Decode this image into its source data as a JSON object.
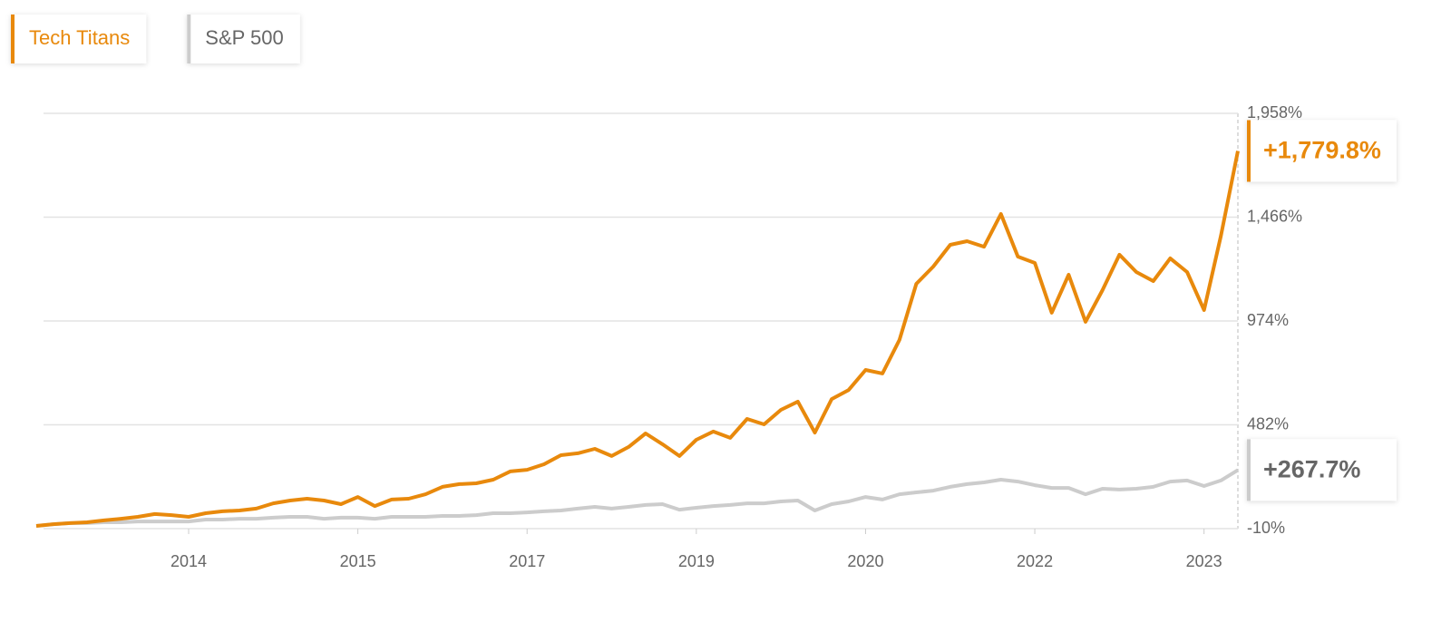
{
  "chart_data": {
    "type": "line",
    "categories": [
      null,
      null,
      null,
      null,
      null,
      null,
      null,
      null,
      null,
      "2014",
      null,
      null,
      null,
      null,
      null,
      null,
      null,
      null,
      null,
      "2015",
      null,
      null,
      null,
      null,
      null,
      null,
      null,
      null,
      null,
      "2017",
      null,
      null,
      null,
      null,
      null,
      null,
      null,
      null,
      null,
      "2019",
      null,
      null,
      null,
      null,
      null,
      null,
      null,
      null,
      null,
      "2020",
      null,
      null,
      null,
      null,
      null,
      null,
      null,
      null,
      null,
      "2022",
      null,
      null,
      null,
      null,
      null,
      null,
      null,
      null,
      null,
      "2023",
      null,
      null
    ],
    "series": [
      {
        "name": "Tech Titans",
        "color": "#e8890c",
        "label_color": "#e8890c",
        "values": [
          3,
          11,
          16,
          20,
          29,
          37,
          46,
          59,
          54,
          46,
          63,
          72,
          76,
          85,
          110,
          123,
          132,
          123,
          106,
          140,
          97,
          128,
          132,
          153,
          188,
          201,
          205,
          222,
          261,
          269,
          295,
          338,
          347,
          368,
          334,
          377,
          441,
          390,
          334,
          411,
          450,
          420,
          510,
          484,
          553,
          592,
          445,
          604,
          647,
          742,
          725,
          884,
          1150,
          1232,
          1335,
          1352,
          1326,
          1481,
          1279,
          1249,
          1013,
          1193,
          970,
          1120,
          1288,
          1206,
          1163,
          1271,
          1206,
          1026,
          1378,
          1779.8
        ],
        "value_labels": [
          null,
          null,
          null,
          null,
          null,
          null,
          null,
          null,
          null,
          null,
          null,
          null,
          null,
          null,
          null,
          null,
          null,
          null,
          null,
          null,
          null,
          null,
          null,
          null,
          null,
          null,
          null,
          null,
          null,
          null,
          null,
          null,
          null,
          null,
          null,
          null,
          null,
          null,
          null,
          null,
          null,
          null,
          null,
          null,
          null,
          null,
          null,
          null,
          null,
          null,
          null,
          null,
          null,
          null,
          null,
          null,
          null,
          null,
          null,
          null,
          null,
          null,
          null,
          null,
          null,
          null,
          null,
          null,
          null,
          null,
          null,
          "+1,779.8%"
        ]
      },
      {
        "name": "S&P 500",
        "color": "#cccccc",
        "label_color": "#666666",
        "values": [
          3,
          11,
          16,
          16,
          20,
          20,
          24,
          24,
          24,
          24,
          33,
          33,
          37,
          37,
          42,
          46,
          46,
          37,
          42,
          42,
          37,
          46,
          46,
          46,
          50,
          50,
          54,
          63,
          63,
          67,
          72,
          76,
          85,
          93,
          85,
          93,
          102,
          106,
          80,
          89,
          97,
          102,
          110,
          110,
          119,
          123,
          76,
          106,
          119,
          140,
          128,
          153,
          162,
          170,
          188,
          201,
          209,
          222,
          213,
          196,
          183,
          183,
          153,
          179,
          175,
          179,
          188,
          213,
          218,
          192,
          218,
          267.7
        ],
        "value_labels": [
          null,
          null,
          null,
          null,
          null,
          null,
          null,
          null,
          null,
          null,
          null,
          null,
          null,
          null,
          null,
          null,
          null,
          null,
          null,
          null,
          null,
          null,
          null,
          null,
          null,
          null,
          null,
          null,
          null,
          null,
          null,
          null,
          null,
          null,
          null,
          null,
          null,
          null,
          null,
          null,
          null,
          null,
          null,
          null,
          null,
          null,
          null,
          null,
          null,
          null,
          null,
          null,
          null,
          null,
          null,
          null,
          null,
          null,
          null,
          null,
          null,
          null,
          null,
          null,
          null,
          null,
          null,
          null,
          null,
          null,
          null,
          "+267.7%"
        ]
      }
    ],
    "ylim": [
      -10,
      1958
    ],
    "yticks": [
      {
        "value": -10,
        "label": "-10%"
      },
      {
        "value": 482,
        "label": "482%"
      },
      {
        "value": 974,
        "label": "974%"
      },
      {
        "value": 1466,
        "label": "1,466%"
      },
      {
        "value": 1958,
        "label": "1,958%"
      }
    ],
    "grid": true
  }
}
